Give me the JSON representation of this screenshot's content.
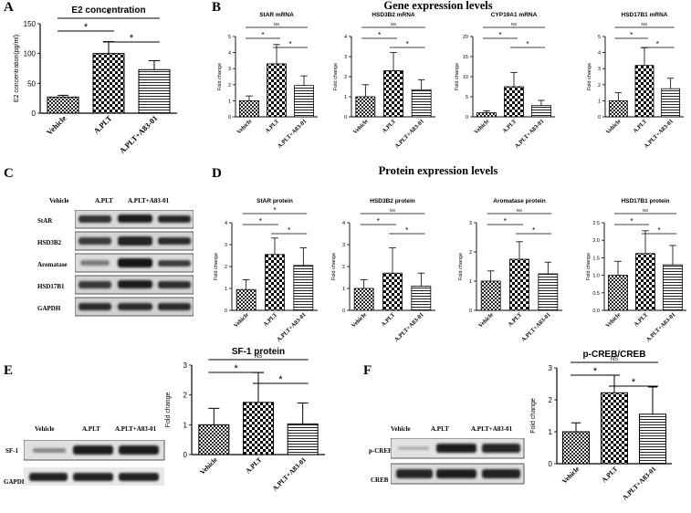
{
  "panels": {
    "A": "A",
    "B": "B",
    "C": "C",
    "D": "D",
    "E": "E",
    "F": "F"
  },
  "sections": {
    "gene": "Gene expression levels",
    "protein": "Protein expression levels"
  },
  "blots": {
    "C": {
      "lanes": [
        "Vehicle",
        "A.PLT",
        "A.PLT+A83-01"
      ],
      "rows": [
        "StAR",
        "HSD3B2",
        "Aromatase",
        "HSD17B1",
        "GAPDH"
      ]
    },
    "E": {
      "lanes": [
        "Vehicle",
        "A.PLT",
        "A.PLT+A83-01"
      ],
      "rows": [
        "SF-1",
        "GAPDH"
      ]
    },
    "F": {
      "lanes": [
        "Vehicle",
        "A.PLT",
        "A.PLT+A83-01"
      ],
      "rows": [
        "p-CREB",
        "CREB"
      ]
    }
  },
  "colors": {
    "bar_fill": "#ffffff",
    "axis": "#000000"
  },
  "chart_data": [
    {
      "id": "A",
      "type": "bar",
      "title": "E2 concentration",
      "xlabel": "",
      "ylabel": "E2 concentration(pg/ml)",
      "ylim": [
        0,
        150
      ],
      "yticks": [
        "0",
        "50",
        "100",
        "150"
      ],
      "ytick_values": [
        0,
        50,
        100,
        150
      ],
      "categories": [
        "Vehicle",
        "A.PLT",
        "A.PLT+A83-01"
      ],
      "values": [
        27,
        100,
        73
      ],
      "errors": [
        3,
        20,
        15
      ],
      "brackets": [
        {
          "from": 0,
          "to": 2,
          "label": "*"
        },
        {
          "from": 0,
          "to": 1,
          "label": "*"
        },
        {
          "from": 1,
          "to": 2,
          "label": "*"
        }
      ]
    },
    {
      "id": "B1",
      "type": "bar",
      "title": "StAR mRNA",
      "xlabel": "",
      "ylabel": "Fold change",
      "ylim": [
        0,
        5
      ],
      "yticks": [
        "0",
        "1",
        "2",
        "3",
        "4",
        "5"
      ],
      "ytick_values": [
        0,
        1,
        2,
        3,
        4,
        5
      ],
      "categories": [
        "Vehicle",
        "A.PLT",
        "A.PLT+A83-01"
      ],
      "values": [
        1.0,
        3.3,
        1.95
      ],
      "errors": [
        0.3,
        1.2,
        0.6
      ],
      "brackets": [
        {
          "from": 0,
          "to": 2,
          "label": "NS"
        },
        {
          "from": 0,
          "to": 1,
          "label": "*"
        },
        {
          "from": 1,
          "to": 2,
          "label": "*"
        }
      ]
    },
    {
      "id": "B2",
      "type": "bar",
      "title": "HSD3B2 mRNA",
      "xlabel": "",
      "ylabel": "Fold change",
      "ylim": [
        0,
        4
      ],
      "yticks": [
        "0",
        "1",
        "2",
        "3",
        "4"
      ],
      "ytick_values": [
        0,
        1,
        2,
        3,
        4
      ],
      "categories": [
        "Vehicle",
        "A.PLT",
        "A.PLT+A83-01"
      ],
      "values": [
        1.0,
        2.3,
        1.35
      ],
      "errors": [
        0.6,
        0.9,
        0.5
      ],
      "brackets": [
        {
          "from": 0,
          "to": 2,
          "label": "NS"
        },
        {
          "from": 0,
          "to": 1,
          "label": "*"
        },
        {
          "from": 1,
          "to": 2,
          "label": "*"
        }
      ]
    },
    {
      "id": "B3",
      "type": "bar",
      "title": "CYP19A1 mRNA",
      "xlabel": "",
      "ylabel": "Fold change",
      "ylim": [
        0,
        20
      ],
      "yticks": [
        "0",
        "5",
        "10",
        "15",
        "20"
      ],
      "ytick_values": [
        0,
        5,
        10,
        15,
        20
      ],
      "categories": [
        "Vehicle",
        "A.PLT",
        "A.PLT+A83-01"
      ],
      "values": [
        1.0,
        7.5,
        2.8
      ],
      "errors": [
        0.5,
        3.5,
        1.3
      ],
      "brackets": [
        {
          "from": 0,
          "to": 2,
          "label": "NS"
        },
        {
          "from": 0,
          "to": 1,
          "label": "*"
        },
        {
          "from": 1,
          "to": 2,
          "label": "*"
        }
      ]
    },
    {
      "id": "B4",
      "type": "bar",
      "title": "HSD17B1 mRNA",
      "xlabel": "",
      "ylabel": "Fold change",
      "ylim": [
        0,
        5
      ],
      "yticks": [
        "0",
        "1",
        "2",
        "3",
        "4",
        "5"
      ],
      "ytick_values": [
        0,
        1,
        2,
        3,
        4,
        5
      ],
      "categories": [
        "Vehicle",
        "A.PLT",
        "A.PLT+A83-01"
      ],
      "values": [
        1.0,
        3.2,
        1.75
      ],
      "errors": [
        0.5,
        1.1,
        0.65
      ],
      "brackets": [
        {
          "from": 0,
          "to": 2,
          "label": "NS"
        },
        {
          "from": 0,
          "to": 1,
          "label": "*"
        },
        {
          "from": 1,
          "to": 2,
          "label": "*"
        }
      ]
    },
    {
      "id": "D1",
      "type": "bar",
      "title": "StAR protein",
      "xlabel": "",
      "ylabel": "Fold change",
      "ylim": [
        0,
        4
      ],
      "yticks": [
        "0",
        "1",
        "2",
        "3",
        "4"
      ],
      "ytick_values": [
        0,
        1,
        2,
        3,
        4
      ],
      "categories": [
        "Vehicle",
        "A.PLT",
        "A.PLT+A83-01"
      ],
      "values": [
        0.95,
        2.55,
        2.05
      ],
      "errors": [
        0.45,
        0.75,
        0.8
      ],
      "brackets": [
        {
          "from": 0,
          "to": 2,
          "label": "*"
        },
        {
          "from": 0,
          "to": 1,
          "label": "*"
        },
        {
          "from": 1,
          "to": 2,
          "label": "*"
        }
      ]
    },
    {
      "id": "D2",
      "type": "bar",
      "title": "HSD3B2 protein",
      "xlabel": "",
      "ylabel": "Fold change",
      "ylim": [
        0,
        4
      ],
      "yticks": [
        "0",
        "1",
        "2",
        "3",
        "4"
      ],
      "ytick_values": [
        0,
        1,
        2,
        3,
        4
      ],
      "categories": [
        "Vehicle",
        "A.PLT",
        "A.PLT+A83-01"
      ],
      "values": [
        1.0,
        1.7,
        1.1
      ],
      "errors": [
        0.4,
        1.15,
        0.6
      ],
      "brackets": [
        {
          "from": 0,
          "to": 2,
          "label": "NS"
        },
        {
          "from": 0,
          "to": 1,
          "label": "*"
        },
        {
          "from": 1,
          "to": 2,
          "label": "*"
        }
      ]
    },
    {
      "id": "D3",
      "type": "bar",
      "title": "Aromatase protein",
      "xlabel": "",
      "ylabel": "Fold change",
      "ylim": [
        0,
        3
      ],
      "yticks": [
        "0",
        "1",
        "2",
        "3"
      ],
      "ytick_values": [
        0,
        1,
        2,
        3
      ],
      "categories": [
        "Vehicle",
        "A.PLT",
        "A.PLT+A83-01"
      ],
      "values": [
        1.0,
        1.75,
        1.25
      ],
      "errors": [
        0.35,
        0.6,
        0.4
      ],
      "brackets": [
        {
          "from": 0,
          "to": 2,
          "label": "NS"
        },
        {
          "from": 0,
          "to": 1,
          "label": "*"
        },
        {
          "from": 1,
          "to": 2,
          "label": "*"
        }
      ]
    },
    {
      "id": "D4",
      "type": "bar",
      "title": "HSD17B1 protein",
      "xlabel": "",
      "ylabel": "Fold change",
      "ylim": [
        0,
        2.5
      ],
      "yticks": [
        "0.0",
        "0.5",
        "1.0",
        "1.5",
        "2.0",
        "2.5"
      ],
      "ytick_values": [
        0,
        0.5,
        1,
        1.5,
        2,
        2.5
      ],
      "categories": [
        "Vehicle",
        "A.PLT",
        "A.PLT+A83-01"
      ],
      "values": [
        1.0,
        1.62,
        1.3
      ],
      "errors": [
        0.4,
        0.65,
        0.55
      ],
      "brackets": [
        {
          "from": 0,
          "to": 2,
          "label": "NS"
        },
        {
          "from": 0,
          "to": 1,
          "label": "*"
        },
        {
          "from": 1,
          "to": 2,
          "label": "*"
        }
      ]
    },
    {
      "id": "E",
      "type": "bar",
      "title": "SF-1 protein",
      "xlabel": "",
      "ylabel": "Fold change",
      "ylim": [
        0,
        3
      ],
      "yticks": [
        "0",
        "1",
        "2",
        "3"
      ],
      "ytick_values": [
        0,
        1,
        2,
        3
      ],
      "categories": [
        "Vehicle",
        "A.PLT",
        "A.PLT+A83-01"
      ],
      "values": [
        1.0,
        1.75,
        1.03
      ],
      "errors": [
        0.55,
        1.0,
        0.7
      ],
      "brackets": [
        {
          "from": 0,
          "to": 2,
          "label": "NS"
        },
        {
          "from": 0,
          "to": 1,
          "label": "*"
        },
        {
          "from": 1,
          "to": 2,
          "label": "*"
        }
      ]
    },
    {
      "id": "F",
      "type": "bar",
      "title": "p-CREB/CREB",
      "xlabel": "",
      "ylabel": "Fold change",
      "ylim": [
        0,
        3
      ],
      "yticks": [
        "0",
        "1",
        "2",
        "3"
      ],
      "ytick_values": [
        0,
        1,
        2,
        3
      ],
      "categories": [
        "Vehicle",
        "A.PLT",
        "A.PLT+A83-01"
      ],
      "values": [
        1.0,
        2.22,
        1.55
      ],
      "errors": [
        0.28,
        0.55,
        0.85
      ],
      "brackets": [
        {
          "from": 0,
          "to": 2,
          "label": "NS"
        },
        {
          "from": 0,
          "to": 1,
          "label": "*"
        },
        {
          "from": 1,
          "to": 2,
          "label": "*"
        }
      ]
    }
  ]
}
